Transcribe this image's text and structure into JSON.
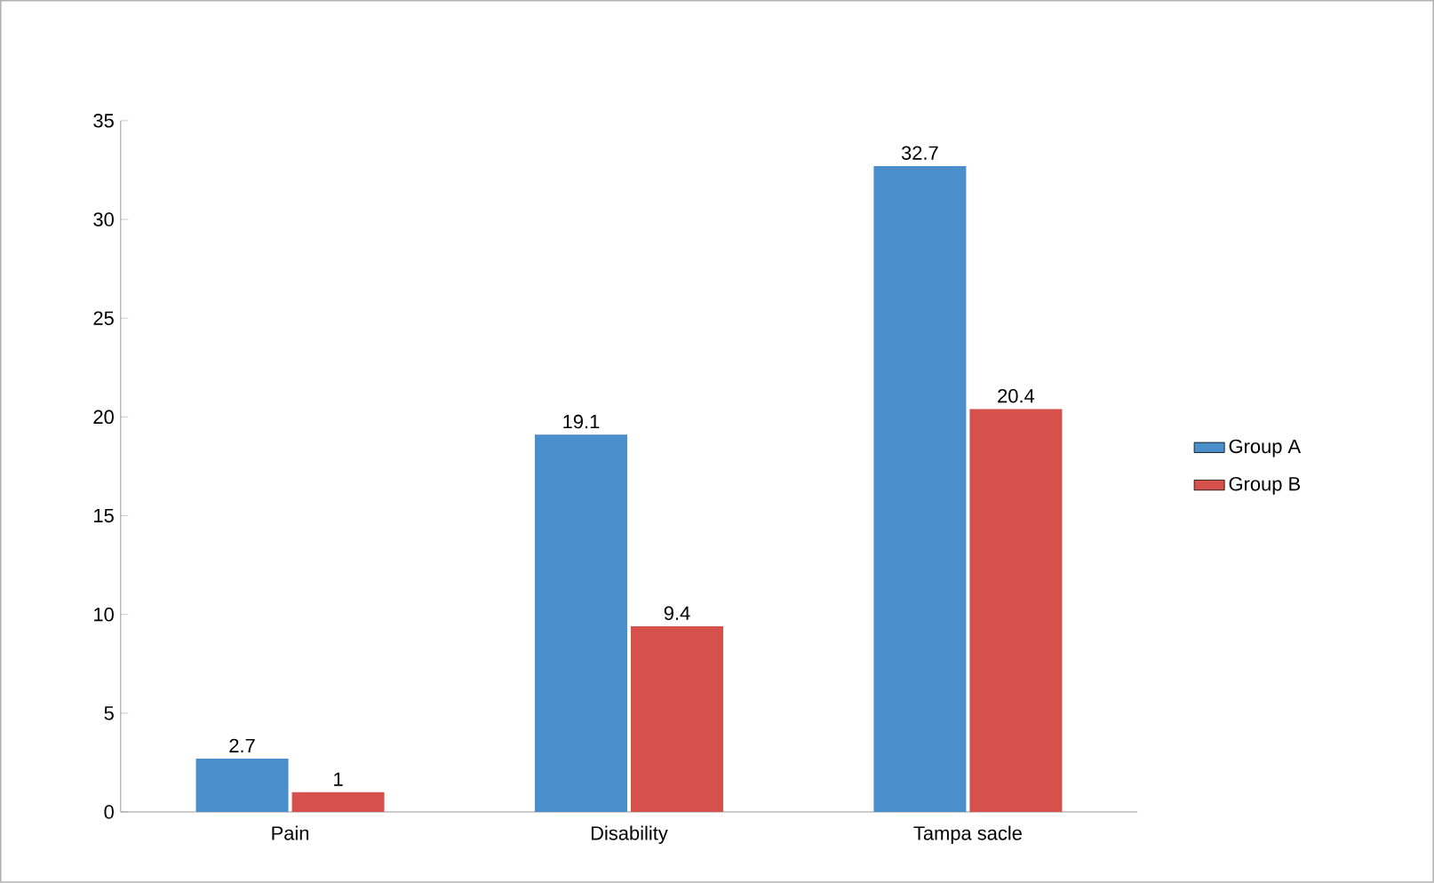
{
  "chart_data": {
    "type": "bar",
    "categories": [
      "Pain",
      "Disability",
      "Tampa sacle"
    ],
    "series": [
      {
        "name": "Group A",
        "color": "#4a8fcc",
        "values": [
          2.7,
          19.1,
          32.7
        ]
      },
      {
        "name": "Group B",
        "color": "#d6504c",
        "values": [
          1,
          9.4,
          20.4
        ]
      }
    ],
    "ylim": [
      0,
      35
    ],
    "yticks": [
      0,
      5,
      10,
      15,
      20,
      25,
      30,
      35
    ],
    "data_labels": true,
    "legend": "right",
    "grid": false
  }
}
